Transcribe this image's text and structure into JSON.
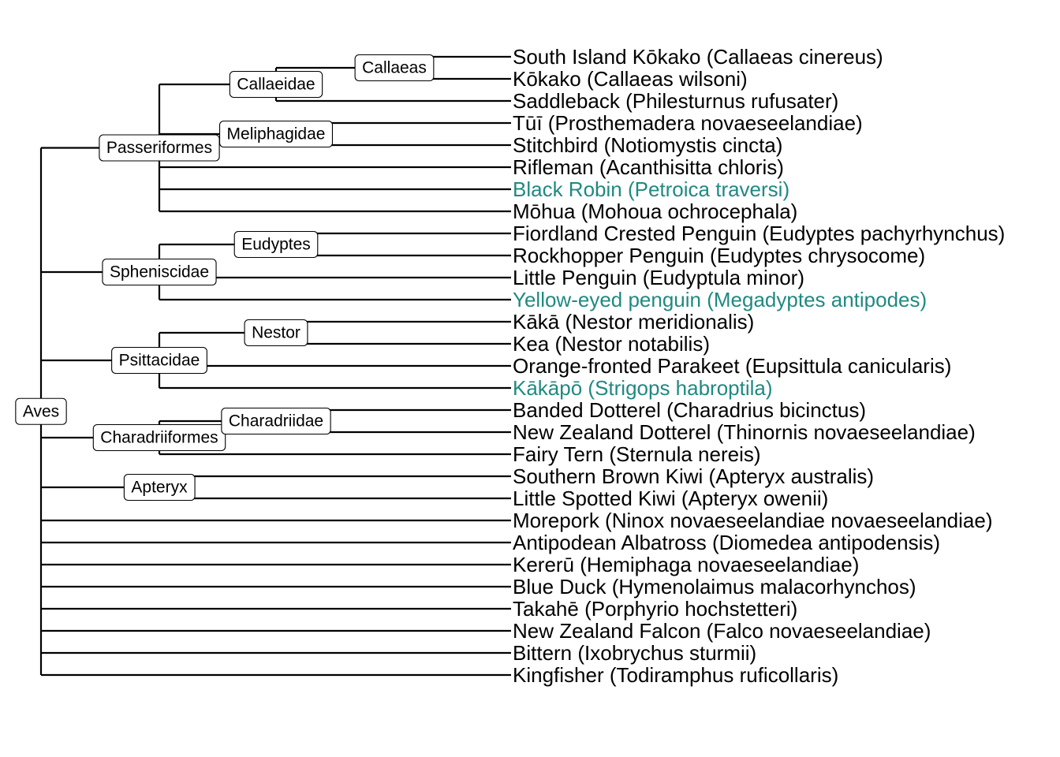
{
  "colors": {
    "default": "#000000",
    "highlight": "#1f8a80"
  },
  "tips": [
    {
      "label": "South Island Kōkako (Callaeas cinereus)",
      "highlight": false
    },
    {
      "label": "Kōkako (Callaeas wilsoni)",
      "highlight": false
    },
    {
      "label": "Saddleback (Philesturnus rufusater)",
      "highlight": false
    },
    {
      "label": "Tūī (Prosthemadera novaeseelandiae)",
      "highlight": false
    },
    {
      "label": "Stitchbird (Notiomystis cincta)",
      "highlight": false
    },
    {
      "label": "Rifleman (Acanthisitta chloris)",
      "highlight": false
    },
    {
      "label": "Black Robin (Petroica traversi)",
      "highlight": true
    },
    {
      "label": "Mōhua (Mohoua ochrocephala)",
      "highlight": false
    },
    {
      "label": "Fiordland Crested Penguin (Eudyptes pachyrhynchus)",
      "highlight": false
    },
    {
      "label": "Rockhopper Penguin (Eudyptes chrysocome)",
      "highlight": false
    },
    {
      "label": "Little Penguin (Eudyptula minor)",
      "highlight": false
    },
    {
      "label": "Yellow-eyed penguin (Megadyptes antipodes)",
      "highlight": true
    },
    {
      "label": "Kākā (Nestor meridionalis)",
      "highlight": false
    },
    {
      "label": "Kea (Nestor notabilis)",
      "highlight": false
    },
    {
      "label": "Orange-fronted Parakeet (Eupsittula canicularis)",
      "highlight": false
    },
    {
      "label": "Kākāpō (Strigops habroptila)",
      "highlight": true
    },
    {
      "label": "Banded Dotterel (Charadrius bicinctus)",
      "highlight": false
    },
    {
      "label": "New Zealand Dotterel (Thinornis novaeseelandiae)",
      "highlight": false
    },
    {
      "label": "Fairy Tern (Sternula nereis)",
      "highlight": false
    },
    {
      "label": "Southern Brown Kiwi (Apteryx australis)",
      "highlight": false
    },
    {
      "label": "Little Spotted Kiwi (Apteryx owenii)",
      "highlight": false
    },
    {
      "label": "Morepork (Ninox novaeseelandiae novaeseelandiae)",
      "highlight": false
    },
    {
      "label": "Antipodean Albatross (Diomedea antipodensis)",
      "highlight": false
    },
    {
      "label": "Kererū (Hemiphaga novaeseelandiae)",
      "highlight": false
    },
    {
      "label": "Blue Duck (Hymenolaimus malacorhynchos)",
      "highlight": false
    },
    {
      "label": "Takahē (Porphyrio hochstetteri)",
      "highlight": false
    },
    {
      "label": "New Zealand Falcon (Falco novaeseelandiae)",
      "highlight": false
    },
    {
      "label": "Bittern (Ixobrychus sturmii)",
      "highlight": false
    },
    {
      "label": "Kingfisher (Todiramphus ruficollaris)",
      "highlight": false
    }
  ],
  "tree": {
    "label": "Aves",
    "children": [
      {
        "label": "Passeriformes",
        "children": [
          {
            "label": "Callaeidae",
            "children": [
              {
                "label": "Callaeas",
                "children": [
                  {
                    "tip": 0
                  },
                  {
                    "tip": 1
                  }
                ]
              },
              {
                "tip": 2
              }
            ]
          },
          {
            "label": "Meliphagidae",
            "children": [
              {
                "tip": 3
              },
              {
                "tip": 4
              }
            ]
          },
          {
            "tip": 5
          },
          {
            "tip": 6
          },
          {
            "tip": 7
          }
        ]
      },
      {
        "label": "Spheniscidae",
        "children": [
          {
            "label": "Eudyptes",
            "children": [
              {
                "tip": 8
              },
              {
                "tip": 9
              }
            ]
          },
          {
            "tip": 10
          },
          {
            "tip": 11
          }
        ]
      },
      {
        "label": "Psittacidae",
        "children": [
          {
            "label": "Nestor",
            "children": [
              {
                "tip": 12
              },
              {
                "tip": 13
              }
            ]
          },
          {
            "tip": 14
          },
          {
            "tip": 15
          }
        ]
      },
      {
        "label": "Charadriiformes",
        "children": [
          {
            "label": "Charadriidae",
            "children": [
              {
                "tip": 16
              },
              {
                "tip": 17
              }
            ]
          },
          {
            "tip": 18
          }
        ]
      },
      {
        "label": "Apteryx",
        "children": [
          {
            "tip": 19
          },
          {
            "tip": 20
          }
        ]
      },
      {
        "tip": 21
      },
      {
        "tip": 22
      },
      {
        "tip": 23
      },
      {
        "tip": 24
      },
      {
        "tip": 25
      },
      {
        "tip": 26
      },
      {
        "tip": 27
      },
      {
        "tip": 28
      }
    ]
  }
}
